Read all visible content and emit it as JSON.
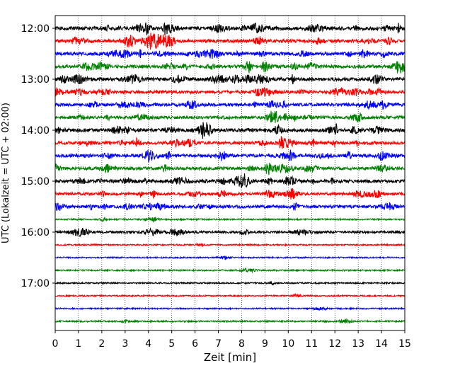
{
  "chart_data": {
    "type": "line",
    "xlabel": "Zeit  [min]",
    "ylabel": "UTC (Lokalzeit = UTC + 02:00)",
    "xlim": [
      0,
      15
    ],
    "x_ticks": [
      0,
      1,
      2,
      3,
      4,
      5,
      6,
      7,
      8,
      9,
      10,
      11,
      12,
      13,
      14,
      15
    ],
    "grid": "vertical dotted lines at each minute",
    "y_ticks": [
      "12:00",
      "13:00",
      "14:00",
      "15:00",
      "16:00",
      "17:00"
    ],
    "trace_interval_min": 15,
    "trace_colors": [
      "#000000",
      "#ff0000",
      "#0000ff",
      "#008000"
    ],
    "traces": [
      {
        "start": "12:00",
        "color": "#000000",
        "activity": 1.0
      },
      {
        "start": "12:15",
        "color": "#ff0000",
        "activity": 0.9
      },
      {
        "start": "12:30",
        "color": "#0000ff",
        "activity": 0.9
      },
      {
        "start": "12:45",
        "color": "#008000",
        "activity": 0.9
      },
      {
        "start": "13:00",
        "color": "#000000",
        "activity": 1.0
      },
      {
        "start": "13:15",
        "color": "#ff0000",
        "activity": 0.8
      },
      {
        "start": "13:30",
        "color": "#0000ff",
        "activity": 0.8
      },
      {
        "start": "13:45",
        "color": "#008000",
        "activity": 0.8
      },
      {
        "start": "14:00",
        "color": "#000000",
        "activity": 1.0
      },
      {
        "start": "14:15",
        "color": "#ff0000",
        "activity": 0.8
      },
      {
        "start": "14:30",
        "color": "#0000ff",
        "activity": 0.9
      },
      {
        "start": "14:45",
        "color": "#008000",
        "activity": 0.8
      },
      {
        "start": "15:00",
        "color": "#000000",
        "activity": 0.9
      },
      {
        "start": "15:15",
        "color": "#ff0000",
        "activity": 0.7
      },
      {
        "start": "15:30",
        "color": "#0000ff",
        "activity": 0.8
      },
      {
        "start": "15:45",
        "color": "#008000",
        "activity": 0.15
      },
      {
        "start": "16:00",
        "color": "#000000",
        "activity": 0.5
      },
      {
        "start": "16:15",
        "color": "#ff0000",
        "activity": 0.1
      },
      {
        "start": "16:30",
        "color": "#0000ff",
        "activity": 0.1
      },
      {
        "start": "16:45",
        "color": "#008000",
        "activity": 0.1
      },
      {
        "start": "17:00",
        "color": "#000000",
        "activity": 0.1
      },
      {
        "start": "17:15",
        "color": "#ff0000",
        "activity": 0.1
      },
      {
        "start": "17:30",
        "color": "#0000ff",
        "activity": 0.1
      },
      {
        "start": "17:45",
        "color": "#008000",
        "activity": 0.15
      }
    ]
  }
}
